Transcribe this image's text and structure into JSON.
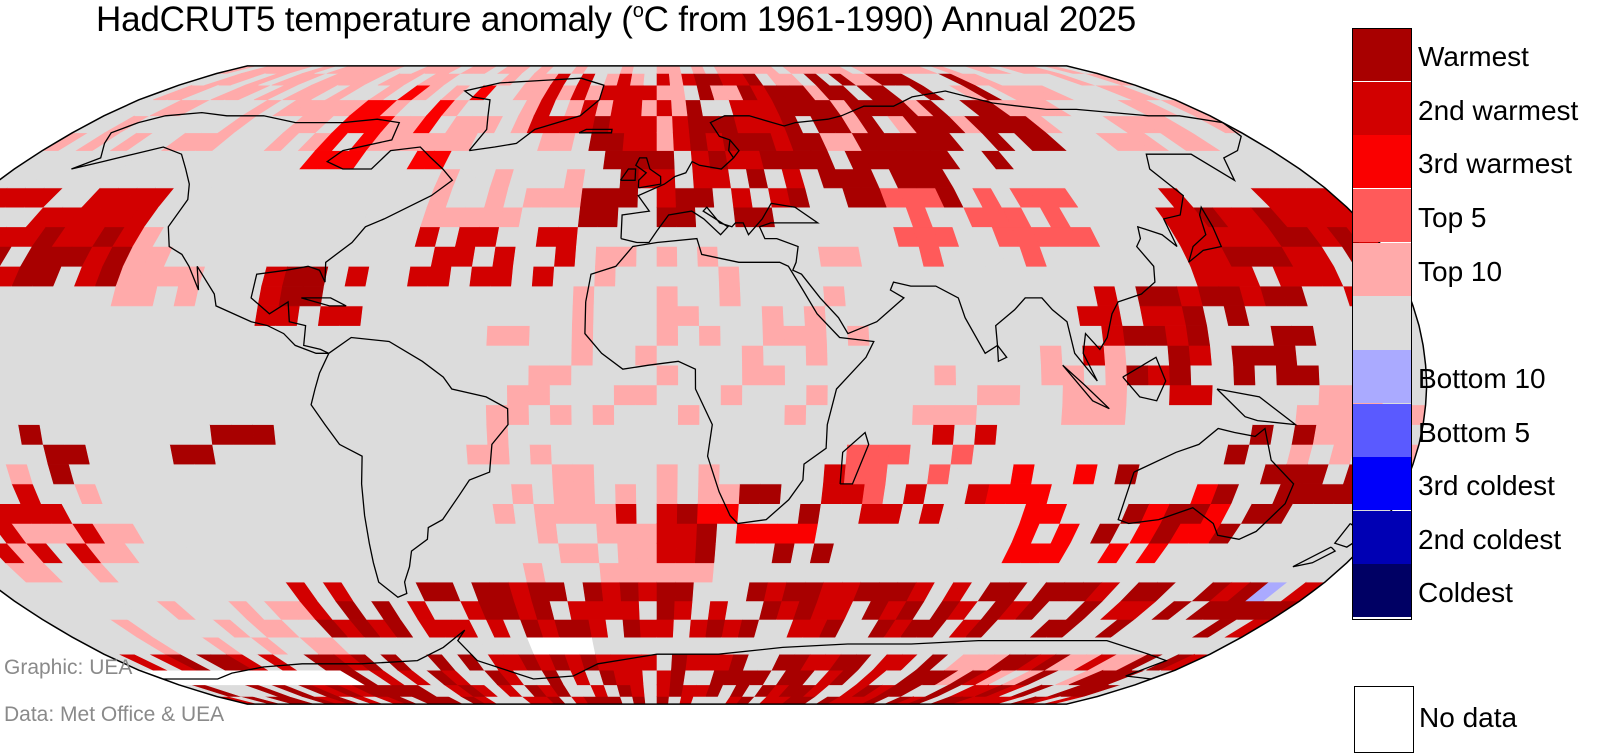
{
  "title": {
    "prefix": "HadCRUT5 temperature anomaly (",
    "degree_superscript": "o",
    "suffix": "C from 1961-1990) Annual 2025"
  },
  "legend": [
    {
      "label": "Warmest",
      "color": "#a80000"
    },
    {
      "label": "2nd warmest",
      "color": "#d20000"
    },
    {
      "label": "3rd warmest",
      "color": "#fa0000"
    },
    {
      "label": "Top 5",
      "color": "#ff5a5a"
    },
    {
      "label": "Top 10",
      "color": "#ffaaaa"
    },
    {
      "label": "",
      "color": "#dcdcdc"
    },
    {
      "label": "Bottom 10",
      "color": "#aaaaff"
    },
    {
      "label": "Bottom 5",
      "color": "#5a5aff"
    },
    {
      "label": "3rd coldest",
      "color": "#0000fa"
    },
    {
      "label": "2nd coldest",
      "color": "#0000b4"
    },
    {
      "label": "Coldest",
      "color": "#000064"
    }
  ],
  "no_data": {
    "label": "No data",
    "color": "#ffffff"
  },
  "credits": {
    "graphic": "Graphic: UEA",
    "data": "Data: Met Office & UEA"
  },
  "map": {
    "projection": "Robinson",
    "ocean_color": "#dcdcdc",
    "coastline_color": "#000000",
    "grid_resolution_deg": 5
  }
}
